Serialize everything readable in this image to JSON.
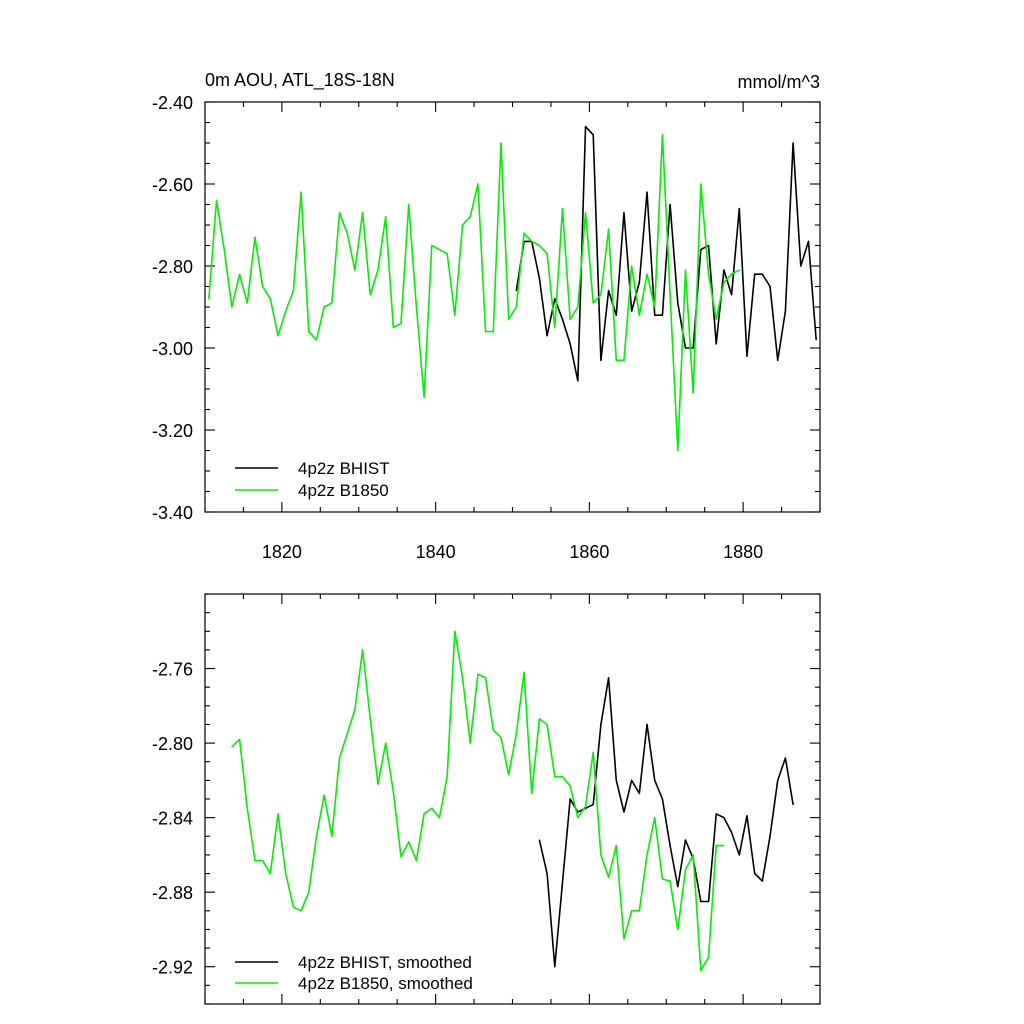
{
  "chart_data": [
    {
      "type": "line",
      "title": "0m AOU, ATL_18S-18N",
      "units": "mmol/m^3",
      "xlim": [
        1810,
        1890
      ],
      "ylim": [
        -3.4,
        -2.4
      ],
      "xticks": [
        1820,
        1840,
        1860,
        1880
      ],
      "xtick_labels": [
        "1820",
        "1840",
        "1860",
        "1880"
      ],
      "yticks": [
        -3.4,
        -3.2,
        -3.0,
        -2.8,
        -2.6,
        -2.4
      ],
      "ytick_labels": [
        "-3.40",
        "-3.20",
        "-3.00",
        "-2.80",
        "-2.60",
        "-2.40"
      ],
      "legend_location": "bottom-left",
      "series": [
        {
          "name": "4p2z BHIST",
          "color": "#000000",
          "x_start": 1850.5,
          "values": [
            -2.86,
            -2.74,
            -2.74,
            -2.83,
            -2.97,
            -2.88,
            -2.93,
            -2.99,
            -3.08,
            -2.46,
            -2.48,
            -3.03,
            -2.86,
            -2.92,
            -2.67,
            -2.91,
            -2.84,
            -2.62,
            -2.92,
            -2.92,
            -2.65,
            -2.89,
            -3.0,
            -3.0,
            -2.76,
            -2.75,
            -2.99,
            -2.81,
            -2.87,
            -2.66,
            -3.02,
            -2.82,
            -2.82,
            -2.85,
            -3.03,
            -2.91,
            -2.5,
            -2.8,
            -2.74,
            -2.98
          ]
        },
        {
          "name": "4p2z B1850",
          "color": "#00ee00",
          "x_start": 1810.5,
          "values": [
            -2.88,
            -2.64,
            -2.76,
            -2.9,
            -2.82,
            -2.89,
            -2.73,
            -2.85,
            -2.88,
            -2.97,
            -2.91,
            -2.86,
            -2.62,
            -2.96,
            -2.98,
            -2.9,
            -2.89,
            -2.67,
            -2.72,
            -2.81,
            -2.67,
            -2.87,
            -2.81,
            -2.68,
            -2.95,
            -2.94,
            -2.65,
            -2.9,
            -3.12,
            -2.75,
            -2.76,
            -2.77,
            -2.92,
            -2.7,
            -2.68,
            -2.6,
            -2.96,
            -2.96,
            -2.5,
            -2.93,
            -2.9,
            -2.72,
            -2.74,
            -2.75,
            -2.77,
            -2.95,
            -2.66,
            -2.93,
            -2.9,
            -2.67,
            -2.89,
            -2.87,
            -2.71,
            -3.03,
            -3.03,
            -2.8,
            -2.92,
            -2.82,
            -2.9,
            -2.48,
            -2.87,
            -3.25,
            -2.81,
            -3.11,
            -2.6,
            -2.82,
            -2.93,
            -2.84,
            -2.82,
            -2.81
          ]
        }
      ]
    },
    {
      "type": "line",
      "title": "",
      "xlim": [
        1810,
        1890
      ],
      "ylim": [
        -2.94,
        -2.72
      ],
      "xticks": [
        1820,
        1840,
        1860,
        1880
      ],
      "xtick_labels": [],
      "yticks": [
        -2.92,
        -2.88,
        -2.84,
        -2.8,
        -2.76
      ],
      "ytick_labels": [
        "-2.92",
        "-2.88",
        "-2.84",
        "-2.80",
        "-2.76"
      ],
      "legend_location": "bottom-left",
      "series": [
        {
          "name": "4p2z BHIST, smoothed",
          "color": "#000000",
          "x_start": 1853.5,
          "values": [
            -2.852,
            -2.87,
            -2.92,
            -2.875,
            -2.83,
            -2.837,
            -2.835,
            -2.833,
            -2.79,
            -2.765,
            -2.82,
            -2.837,
            -2.82,
            -2.827,
            -2.79,
            -2.82,
            -2.83,
            -2.855,
            -2.877,
            -2.852,
            -2.862,
            -2.885,
            -2.885,
            -2.838,
            -2.84,
            -2.848,
            -2.86,
            -2.839,
            -2.87,
            -2.874,
            -2.85,
            -2.82,
            -2.808,
            -2.833
          ]
        },
        {
          "name": "4p2z B1850, smoothed",
          "color": "#00ee00",
          "x_start": 1813.5,
          "values": [
            -2.802,
            -2.798,
            -2.835,
            -2.863,
            -2.863,
            -2.87,
            -2.838,
            -2.87,
            -2.888,
            -2.89,
            -2.88,
            -2.85,
            -2.828,
            -2.85,
            -2.808,
            -2.795,
            -2.782,
            -2.75,
            -2.787,
            -2.822,
            -2.8,
            -2.826,
            -2.861,
            -2.853,
            -2.863,
            -2.838,
            -2.835,
            -2.84,
            -2.818,
            -2.74,
            -2.765,
            -2.8,
            -2.763,
            -2.765,
            -2.793,
            -2.797,
            -2.817,
            -2.795,
            -2.762,
            -2.827,
            -2.787,
            -2.79,
            -2.818,
            -2.818,
            -2.823,
            -2.84,
            -2.834,
            -2.805,
            -2.86,
            -2.872,
            -2.855,
            -2.905,
            -2.89,
            -2.89,
            -2.86,
            -2.84,
            -2.873,
            -2.874,
            -2.9,
            -2.868,
            -2.86,
            -2.922,
            -2.915,
            -2.855,
            -2.855
          ]
        }
      ]
    }
  ]
}
